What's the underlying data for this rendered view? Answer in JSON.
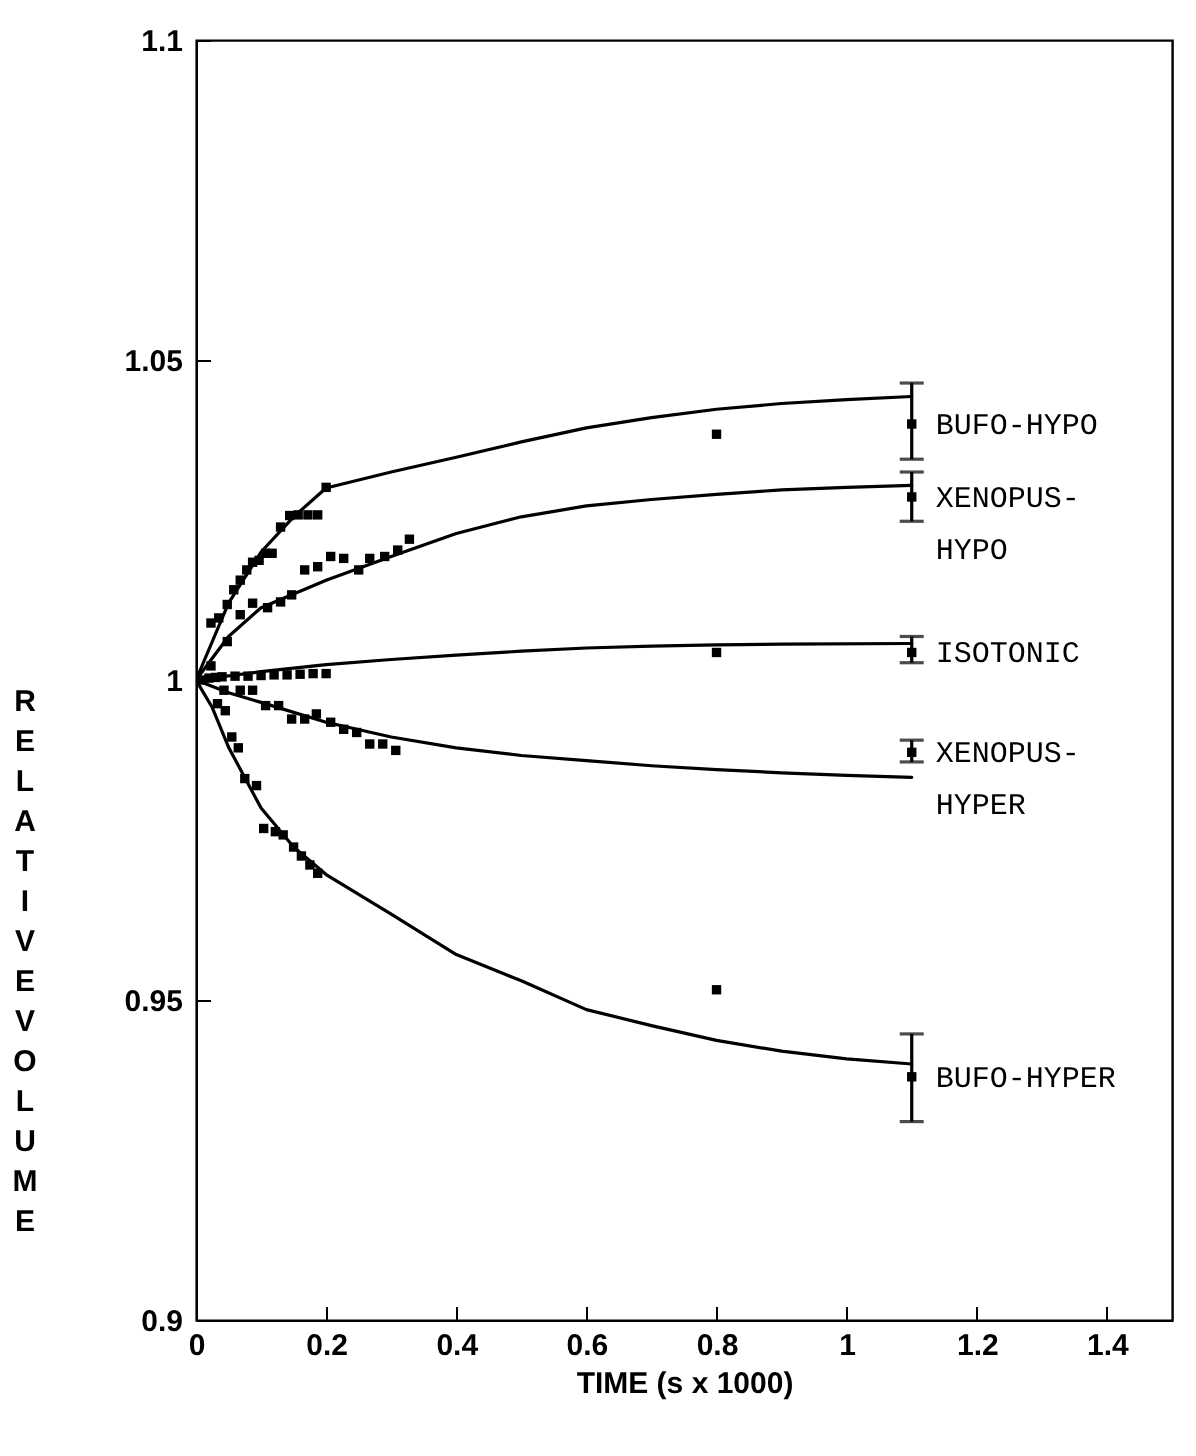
{
  "chart_data": {
    "type": "scatter",
    "xlabel": "TIME (s x 1000)",
    "ylabel": "RELATIVE VOLUME",
    "xlim": [
      0,
      1.5
    ],
    "xticks": [
      0,
      0.2,
      0.4,
      0.6,
      0.8,
      1,
      1.2,
      1.4
    ],
    "ylim": [
      0.9,
      1.1
    ],
    "yticks": [
      0.9,
      0.95,
      1,
      1.05,
      1.1
    ],
    "grid": false,
    "marker": "square",
    "series": [
      {
        "name": "BUFO-HYPO",
        "color": "#000000",
        "x": [
          0.023,
          0.035,
          0.048,
          0.058,
          0.068,
          0.078,
          0.087,
          0.097,
          0.107,
          0.117,
          0.13,
          0.144,
          0.157,
          0.172,
          0.187,
          0.2,
          0.8,
          1.1
        ],
        "values": [
          1.0089,
          1.0097,
          1.0118,
          1.0141,
          1.0156,
          1.0172,
          1.0184,
          1.0187,
          1.0198,
          1.0198,
          1.0239,
          1.0257,
          1.0258,
          1.0258,
          1.0258,
          1.0301,
          1.0384,
          1.04
        ],
        "errors": [
          null,
          null,
          null,
          null,
          null,
          null,
          null,
          null,
          null,
          null,
          null,
          null,
          null,
          null,
          null,
          null,
          null,
          [
            1.0345,
            1.0464
          ]
        ]
      },
      {
        "type": "line",
        "marker": "none",
        "color": "#000000",
        "x": [
          0,
          0.05,
          0.1,
          0.15,
          0.2,
          0.3,
          0.4,
          0.5,
          0.6,
          0.7,
          0.8,
          0.9,
          1,
          1.1
        ],
        "values": [
          1,
          1.012,
          1.02,
          1.0255,
          1.03,
          1.0325,
          1.0348,
          1.0372,
          1.0394,
          1.041,
          1.0423,
          1.0432,
          1.0438,
          1.0443
        ]
      },
      {
        "name": "XENOPUS-HYPO",
        "color": "#000000",
        "x": [
          0.023,
          0.048,
          0.068,
          0.087,
          0.11,
          0.13,
          0.147,
          0.167,
          0.187,
          0.207,
          0.227,
          0.25,
          0.267,
          0.29,
          0.31,
          0.328,
          1.1
        ],
        "values": [
          1.0022,
          1.006,
          1.0102,
          1.012,
          1.0113,
          1.0122,
          1.0133,
          1.0172,
          1.0177,
          1.0193,
          1.019,
          1.0172,
          1.019,
          1.0193,
          1.0203,
          1.022,
          1.0286
        ],
        "errors": [
          null,
          null,
          null,
          null,
          null,
          null,
          null,
          null,
          null,
          null,
          null,
          null,
          null,
          null,
          null,
          null,
          [
            1.0248,
            1.0325
          ]
        ]
      },
      {
        "type": "line",
        "marker": "none",
        "color": "#000000",
        "x": [
          0,
          0.05,
          0.1,
          0.2,
          0.3,
          0.4,
          0.5,
          0.6,
          0.7,
          0.8,
          0.9,
          1,
          1.1
        ],
        "values": [
          1,
          1.0068,
          1.0113,
          1.0156,
          1.0193,
          1.0229,
          1.0255,
          1.0272,
          1.0282,
          1.029,
          1.0297,
          1.0301,
          1.0304
        ]
      },
      {
        "name": "ISOTONIC",
        "color": "#000000",
        "x": [
          0.01,
          0.02,
          0.03,
          0.04,
          0.06,
          0.08,
          0.1,
          0.12,
          0.14,
          0.16,
          0.18,
          0.2,
          0.8,
          1.1
        ],
        "values": [
          1,
          1.0003,
          1.0004,
          1.0005,
          1.0006,
          1.0006,
          1.0007,
          1.0008,
          1.0008,
          1.0009,
          1.001,
          1.001,
          1.0043,
          1.0043
        ],
        "errors": [
          null,
          null,
          null,
          null,
          null,
          null,
          null,
          null,
          null,
          null,
          null,
          null,
          null,
          [
            1.0027,
            1.0068
          ]
        ]
      },
      {
        "type": "line",
        "marker": "none",
        "color": "#000000",
        "x": [
          0,
          0.1,
          0.2,
          0.3,
          0.4,
          0.5,
          0.6,
          0.7,
          0.8,
          0.9,
          1.1
        ],
        "values": [
          1,
          1.0013,
          1.0024,
          1.0032,
          1.0039,
          1.0045,
          1.005,
          1.0053,
          1.0055,
          1.0056,
          1.0057
        ]
      },
      {
        "name": "XENOPUS-HYPER",
        "color": "#000000",
        "x": [
          0.043,
          0.068,
          0.087,
          0.107,
          0.127,
          0.147,
          0.167,
          0.185,
          0.207,
          0.227,
          0.247,
          0.267,
          0.287,
          0.307,
          1.1
        ],
        "values": [
          0.9984,
          0.9984,
          0.9984,
          0.996,
          0.996,
          0.9939,
          0.9939,
          0.9947,
          0.9934,
          0.9923,
          0.9918,
          0.99,
          0.99,
          0.989,
          0.9887
        ],
        "errors": [
          null,
          null,
          null,
          null,
          null,
          null,
          null,
          null,
          null,
          null,
          null,
          null,
          null,
          null,
          [
            0.9872,
            0.9906
          ]
        ]
      },
      {
        "type": "line",
        "marker": "none",
        "color": "#000000",
        "x": [
          0,
          0.05,
          0.1,
          0.2,
          0.3,
          0.4,
          0.5,
          0.6,
          0.7,
          0.8,
          0.9,
          1,
          1.1
        ],
        "values": [
          1,
          0.998,
          0.9965,
          0.9934,
          0.9911,
          0.9894,
          0.9882,
          0.9874,
          0.9866,
          0.986,
          0.9855,
          0.9851,
          0.9848
        ]
      },
      {
        "name": "BUFO-HYPER",
        "color": "#000000",
        "x": [
          0.033,
          0.045,
          0.055,
          0.065,
          0.075,
          0.093,
          0.104,
          0.122,
          0.134,
          0.15,
          0.162,
          0.175,
          0.187,
          0.8,
          1.1
        ],
        "values": [
          0.9963,
          0.9952,
          0.9911,
          0.9894,
          0.9846,
          0.9835,
          0.9768,
          0.9763,
          0.9758,
          0.9739,
          0.9725,
          0.9711,
          0.9698,
          0.9516,
          0.938
        ],
        "errors": [
          null,
          null,
          null,
          null,
          null,
          null,
          null,
          null,
          null,
          null,
          null,
          null,
          null,
          null,
          [
            0.931,
            0.9447
          ]
        ]
      },
      {
        "type": "line",
        "marker": "none",
        "color": "#000000",
        "x": [
          0,
          0.025,
          0.05,
          0.1,
          0.15,
          0.2,
          0.3,
          0.4,
          0.5,
          0.6,
          0.7,
          0.8,
          0.9,
          1,
          1.1
        ],
        "values": [
          1,
          0.9957,
          0.9895,
          0.98,
          0.9739,
          0.9696,
          0.9634,
          0.9571,
          0.953,
          0.9485,
          0.946,
          0.9437,
          0.942,
          0.9408,
          0.94
        ]
      }
    ]
  }
}
